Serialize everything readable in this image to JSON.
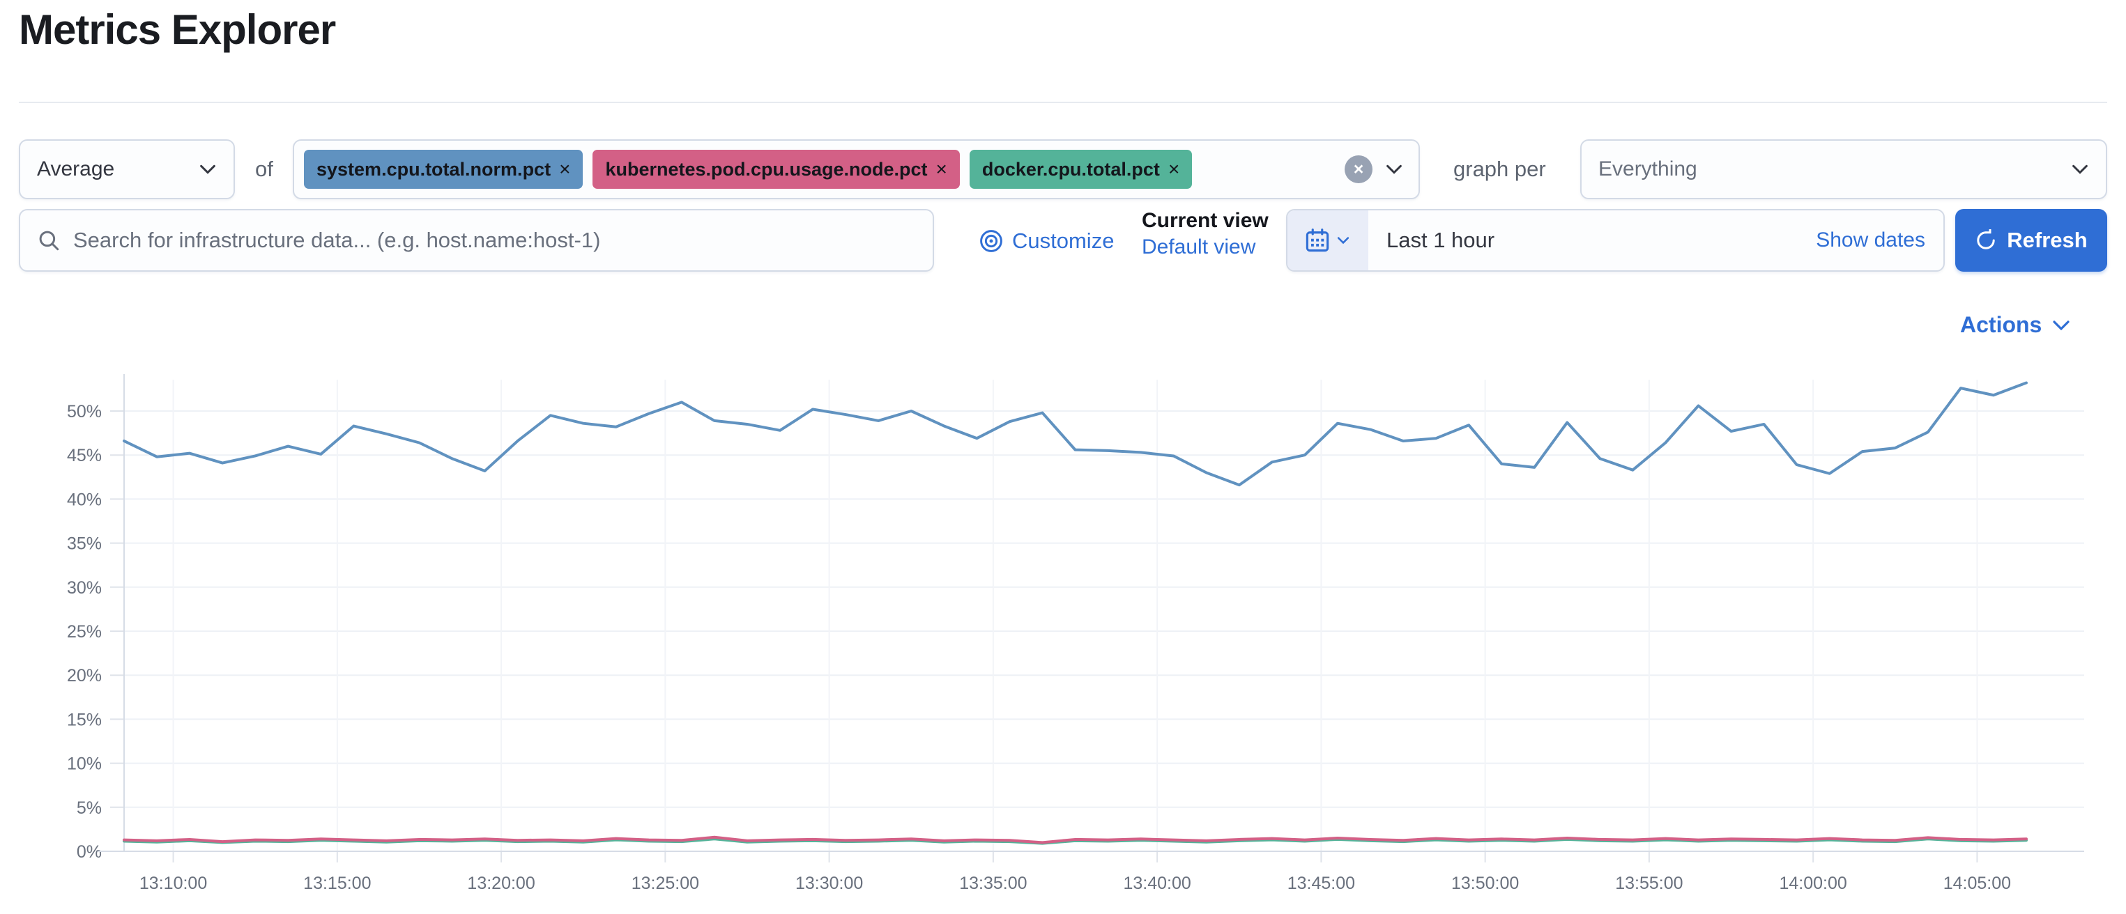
{
  "page": {
    "title": "Metrics Explorer"
  },
  "toolbar": {
    "aggregation": {
      "value": "Average"
    },
    "of_label": "of",
    "metrics": [
      {
        "label": "system.cpu.total.norm.pct",
        "color": "#6092C0"
      },
      {
        "label": "kubernetes.pod.cpu.usage.node.pct",
        "color": "#D36086"
      },
      {
        "label": "docker.cpu.total.pct",
        "color": "#54B399"
      }
    ],
    "remove_glyph": "×",
    "clear_glyph": "×",
    "graph_per_label": "graph per",
    "graph_per": {
      "value": "Everything"
    }
  },
  "search": {
    "placeholder": "Search for infrastructure data... (e.g. host.name:host-1)"
  },
  "view_controls": {
    "customize_label": "Customize",
    "current_view_label": "Current view",
    "default_view_label": "Default view"
  },
  "time_picker": {
    "value": "Last 1 hour",
    "show_dates_label": "Show dates",
    "refresh_label": "Refresh"
  },
  "actions_label": "Actions",
  "icons": {
    "search": "magnifier-icon",
    "customize": "target-circles-icon",
    "calendar": "calendar-icon",
    "chevron": "chevron-down-icon",
    "refresh": "circular-arrow-icon",
    "clear": "x-circle-icon"
  },
  "colors": {
    "primary": "#2f6ed5",
    "text": "#343741",
    "subdued_text": "#69707d",
    "border": "#d3dae6",
    "series_blue": "#6092C0",
    "series_pink": "#D36086",
    "series_green": "#54B399"
  },
  "chart_data": {
    "type": "line",
    "title": "",
    "xlabel": "",
    "ylabel": "",
    "y_unit": "%",
    "ylim": [
      0,
      53.5
    ],
    "y_ticks": [
      0,
      5,
      10,
      15,
      20,
      25,
      30,
      35,
      40,
      45,
      50
    ],
    "x_tick_labels": [
      "13:10:00",
      "13:15:00",
      "13:20:00",
      "13:25:00",
      "13:30:00",
      "13:35:00",
      "13:40:00",
      "13:45:00",
      "13:50:00",
      "13:55:00",
      "14:00:00",
      "14:05:00"
    ],
    "x_start_time": "13:08:30",
    "x_interval_seconds": 60,
    "grid": true,
    "legend_position": "none",
    "series": [
      {
        "name": "system.cpu.total.norm.pct",
        "color": "#6092C0",
        "values": [
          46.6,
          44.8,
          45.2,
          44.1,
          44.9,
          46.0,
          45.1,
          48.3,
          47.4,
          46.4,
          44.6,
          43.2,
          46.6,
          49.5,
          48.6,
          48.2,
          49.7,
          51.0,
          48.9,
          48.5,
          47.8,
          50.2,
          49.6,
          48.9,
          50.0,
          48.3,
          46.9,
          48.8,
          49.8,
          45.6,
          45.5,
          45.3,
          44.9,
          43.0,
          41.6,
          44.2,
          45.0,
          48.6,
          47.9,
          46.6,
          46.9,
          48.4,
          44.0,
          43.6,
          48.7,
          44.6,
          43.3,
          46.4,
          50.6,
          47.7,
          48.5,
          43.9,
          42.9,
          45.4,
          45.8,
          47.6,
          52.6,
          51.8,
          53.2
        ]
      },
      {
        "name": "kubernetes.pod.cpu.usage.node.pct",
        "color": "#D36086",
        "values": [
          1.3,
          1.2,
          1.35,
          1.1,
          1.3,
          1.25,
          1.4,
          1.3,
          1.2,
          1.35,
          1.3,
          1.4,
          1.25,
          1.3,
          1.2,
          1.45,
          1.3,
          1.25,
          1.6,
          1.2,
          1.3,
          1.35,
          1.25,
          1.3,
          1.4,
          1.2,
          1.3,
          1.25,
          1.0,
          1.35,
          1.3,
          1.4,
          1.3,
          1.2,
          1.35,
          1.45,
          1.3,
          1.5,
          1.35,
          1.25,
          1.45,
          1.3,
          1.4,
          1.3,
          1.5,
          1.35,
          1.3,
          1.45,
          1.3,
          1.4,
          1.35,
          1.3,
          1.45,
          1.3,
          1.25,
          1.55,
          1.35,
          1.3,
          1.4
        ]
      },
      {
        "name": "docker.cpu.total.pct",
        "color": "#54B399",
        "values": [
          1.15,
          1.05,
          1.2,
          1.0,
          1.15,
          1.1,
          1.25,
          1.15,
          1.05,
          1.2,
          1.15,
          1.25,
          1.1,
          1.15,
          1.05,
          1.3,
          1.15,
          1.1,
          1.4,
          1.05,
          1.15,
          1.2,
          1.1,
          1.15,
          1.25,
          1.05,
          1.15,
          1.1,
          0.9,
          1.2,
          1.15,
          1.25,
          1.15,
          1.05,
          1.2,
          1.3,
          1.15,
          1.35,
          1.2,
          1.1,
          1.3,
          1.15,
          1.25,
          1.15,
          1.35,
          1.2,
          1.15,
          1.3,
          1.15,
          1.25,
          1.2,
          1.15,
          1.3,
          1.15,
          1.1,
          1.4,
          1.2,
          1.15,
          1.25
        ]
      }
    ]
  }
}
